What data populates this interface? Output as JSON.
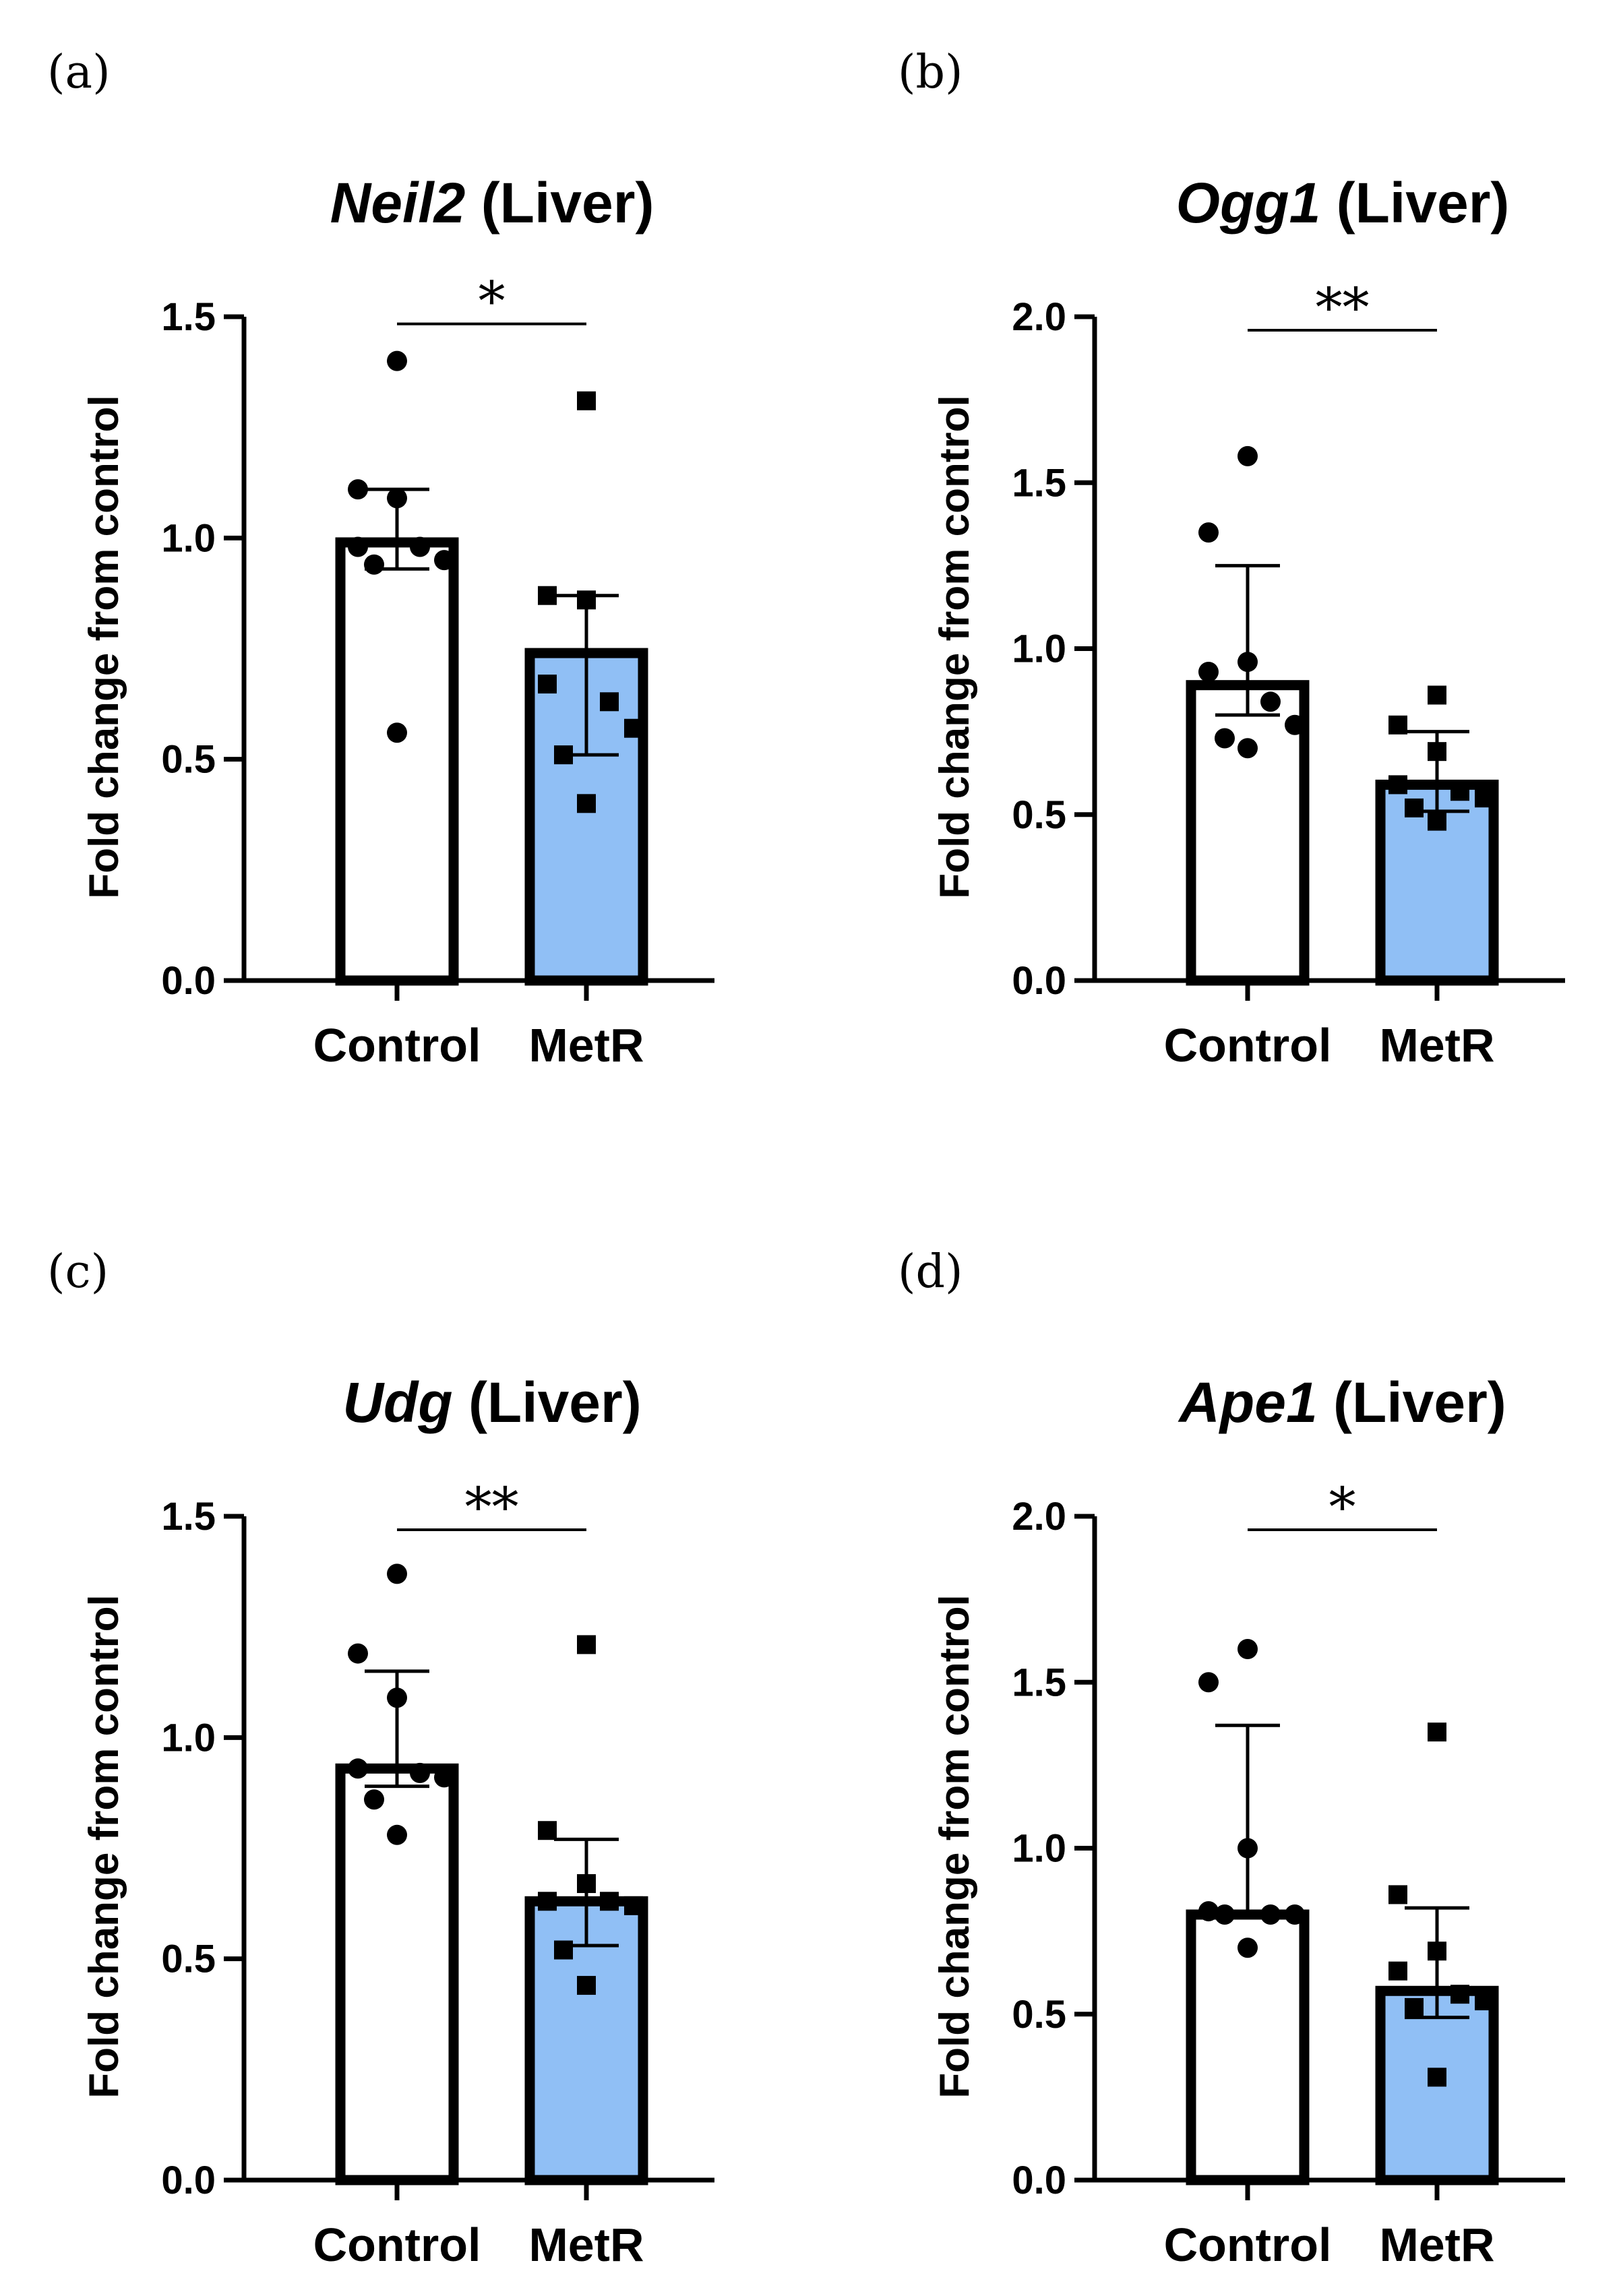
{
  "chart_data": [
    {
      "panel": "(a)",
      "type": "bar",
      "title_gene": "Neil2",
      "title_tissue": "(Liver)",
      "ylabel": "Fold change from control",
      "ylim": [
        0,
        1.5
      ],
      "yticks": [
        "0.0",
        "0.5",
        "1.0",
        "1.5"
      ],
      "categories": [
        "Control",
        "MetR"
      ],
      "means": [
        0.99,
        0.74
      ],
      "err_upper": [
        1.11,
        0.87
      ],
      "err_lower": [
        0.93,
        0.51
      ],
      "points": [
        [
          1.4,
          1.11,
          1.09,
          0.98,
          0.98,
          0.95,
          0.94,
          0.56
        ],
        [
          1.31,
          0.87,
          0.86,
          0.67,
          0.63,
          0.57,
          0.51,
          0.4
        ]
      ],
      "significance": "*",
      "colors": {
        "control_fill": "#ffffff",
        "metr_fill": "#90bff5"
      }
    },
    {
      "panel": "(b)",
      "type": "bar",
      "title_gene": "Ogg1",
      "title_tissue": "(Liver)",
      "ylabel": "Fold change from control",
      "ylim": [
        0,
        2.0
      ],
      "yticks": [
        "0.0",
        "0.5",
        "1.0",
        "1.5",
        "2.0"
      ],
      "categories": [
        "Control",
        "MetR"
      ],
      "means": [
        0.89,
        0.59
      ],
      "err_upper": [
        1.25,
        0.75
      ],
      "err_lower": [
        0.8,
        0.51
      ],
      "points": [
        [
          1.58,
          1.35,
          0.96,
          0.93,
          0.84,
          0.77,
          0.73,
          0.7
        ],
        [
          0.86,
          0.77,
          0.69,
          0.59,
          0.57,
          0.55,
          0.52,
          0.48
        ]
      ],
      "significance": "**",
      "colors": {
        "control_fill": "#ffffff",
        "metr_fill": "#90bff5"
      }
    },
    {
      "panel": "(c)",
      "type": "bar",
      "title_gene": "Udg",
      "title_tissue": "(Liver)",
      "ylabel": "Fold change from control",
      "ylim": [
        0,
        1.5
      ],
      "yticks": [
        "0.0",
        "0.5",
        "1.0",
        "1.5"
      ],
      "categories": [
        "Control",
        "MetR"
      ],
      "means": [
        0.93,
        0.63
      ],
      "err_upper": [
        1.15,
        0.77
      ],
      "err_lower": [
        0.89,
        0.53
      ],
      "points": [
        [
          1.37,
          1.19,
          1.09,
          0.93,
          0.92,
          0.91,
          0.86,
          0.78
        ],
        [
          1.21,
          0.79,
          0.67,
          0.63,
          0.63,
          0.62,
          0.52,
          0.44
        ]
      ],
      "significance": "**",
      "colors": {
        "control_fill": "#ffffff",
        "metr_fill": "#90bff5"
      }
    },
    {
      "panel": "(d)",
      "type": "bar",
      "title_gene": "Ape1",
      "title_tissue": "(Liver)",
      "ylabel": "Fold change from control",
      "ylim": [
        0,
        2.0
      ],
      "yticks": [
        "0.0",
        "0.5",
        "1.0",
        "1.5",
        "2.0"
      ],
      "categories": [
        "Control",
        "MetR"
      ],
      "means": [
        0.8,
        0.57
      ],
      "err_upper": [
        1.37,
        0.82
      ],
      "err_lower": [
        0.8,
        0.49
      ],
      "points": [
        [
          1.6,
          1.5,
          1.0,
          0.81,
          0.8,
          0.8,
          0.8,
          0.7
        ],
        [
          1.35,
          0.86,
          0.69,
          0.63,
          0.56,
          0.54,
          0.52,
          0.31
        ]
      ],
      "significance": "*",
      "colors": {
        "control_fill": "#ffffff",
        "metr_fill": "#90bff5"
      }
    }
  ]
}
